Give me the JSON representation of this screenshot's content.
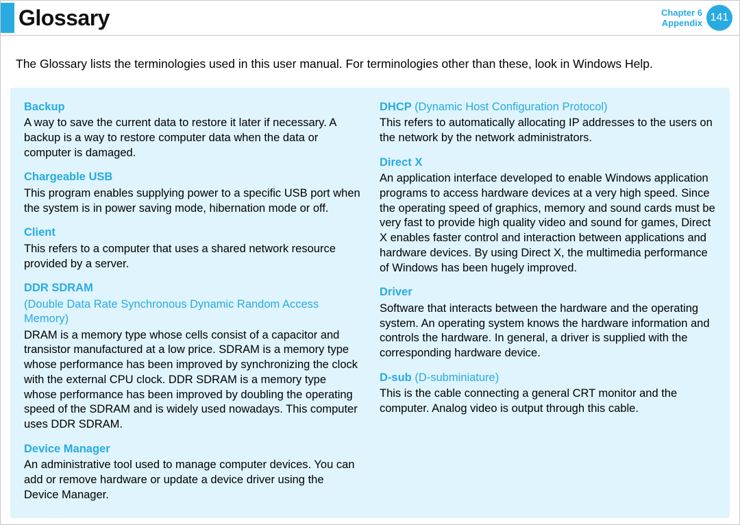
{
  "header": {
    "title": "Glossary",
    "chapter_line1": "Chapter 6",
    "chapter_line2": "Appendix",
    "page_number": "141"
  },
  "intro": "The Glossary lists the terminologies used in this user manual. For terminologies other than these, look in Windows Help.",
  "colors": {
    "accent": "#29abe2",
    "box_bg": "#dff4fc",
    "text": "#000000",
    "border": "#c7c7c7"
  },
  "left_column": {
    "backup": {
      "term": "Backup",
      "def": "A way to save the current data to restore it later if necessary. A backup is a way to restore computer data when the data or computer is damaged."
    },
    "chargeable_usb": {
      "term": "Chargeable USB",
      "def": "This program enables supplying power to a specific USB port when the system is in power saving mode, hibernation mode or off."
    },
    "client": {
      "term": "Client",
      "def": "This refers to a computer that uses a shared network resource provided by a server."
    },
    "ddr_sdram": {
      "term": "DDR SDRAM",
      "sub": "(Double Data Rate Synchronous Dynamic Random Access Memory)",
      "def": "DRAM is a memory type whose cells consist of a capacitor and transistor manufactured at a low price. SDRAM is a memory type whose performance has been improved by synchronizing the clock with the external CPU clock. DDR SDRAM is a memory type whose performance has been improved by doubling the operating speed of the SDRAM and is widely used nowadays. This computer uses DDR SDRAM."
    },
    "device_manager": {
      "term": "Device Manager",
      "def": "An administrative tool used to manage computer devices. You can add or remove hardware or update a device driver using the Device Manager."
    }
  },
  "right_column": {
    "dhcp": {
      "term": "DHCP",
      "sub": "(Dynamic Host Configuration Protocol)",
      "def": "This refers to automatically allocating IP addresses to the users on the network by the network administrators."
    },
    "directx": {
      "term": "Direct X",
      "def": "An application interface developed to enable Windows application programs to access hardware devices at a very high speed. Since the operating speed of graphics, memory and sound cards must be very fast to provide high quality video and sound for games, Direct X enables faster control and interaction between applications and hardware devices. By using Direct X, the multimedia performance of Windows has been hugely improved."
    },
    "driver": {
      "term": "Driver",
      "def": "Software that interacts between the hardware and the operating system. An operating system knows the hardware information and controls the hardware. In general, a driver is supplied with the corresponding hardware device."
    },
    "dsub": {
      "term": "D-sub",
      "sub": "(D-subminiature)",
      "def": "This is the cable connecting a general CRT monitor and the computer. Analog video is output through this cable."
    }
  }
}
